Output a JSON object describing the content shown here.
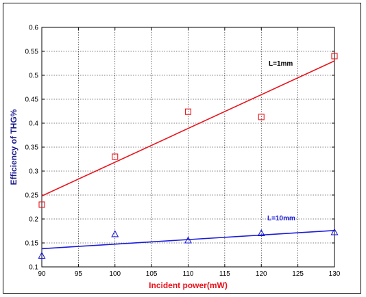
{
  "chart_data": {
    "type": "scatter",
    "xlabel": "Incident power(mW)",
    "ylabel": "Efficiency of THG%",
    "xlim": [
      90,
      130
    ],
    "ylim": [
      0.1,
      0.6
    ],
    "x_ticks": [
      "90",
      "95",
      "100",
      "105",
      "110",
      "115",
      "120",
      "125",
      "130"
    ],
    "y_ticks": [
      "0.1",
      "0.15",
      "0.2",
      "0.25",
      "0.3",
      "0.35",
      "0.4",
      "0.45",
      "0.5",
      "0.55",
      "0.6"
    ],
    "grid": true,
    "xlabel_color": "#e8141c",
    "ylabel_color": "#1a1a8c",
    "series": [
      {
        "label": "L=1mm",
        "label_color": "#000000",
        "color": "#e8141c",
        "marker": "square",
        "x": [
          90,
          100,
          110,
          120,
          130
        ],
        "y": [
          0.23,
          0.33,
          0.424,
          0.413,
          0.54
        ],
        "fit": [
          [
            90,
            0.248
          ],
          [
            130,
            0.53
          ]
        ]
      },
      {
        "label": "L=10mm",
        "label_color": "#1a1adc",
        "color": "#1a1adc",
        "marker": "triangle",
        "x": [
          90,
          100,
          110,
          120,
          130
        ],
        "y": [
          0.123,
          0.168,
          0.155,
          0.17,
          0.172
        ],
        "fit": [
          [
            90,
            0.138
          ],
          [
            130,
            0.176
          ]
        ]
      }
    ]
  }
}
